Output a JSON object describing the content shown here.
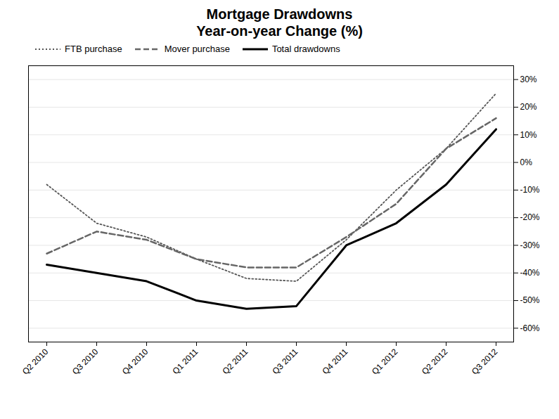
{
  "chart_data": {
    "type": "line",
    "title": "Mortgage Drawdowns\nYear-on-year Change (%)",
    "categories": [
      "Q2 2010",
      "Q3 2010",
      "Q4 2010",
      "Q1 2011",
      "Q2 2011",
      "Q3 2011",
      "Q4 2011",
      "Q1 2012",
      "Q2 2012",
      "Q3 2012"
    ],
    "series": [
      {
        "name": "FTB purchase",
        "color": "#555555",
        "line_style": "dotted",
        "values": [
          -8,
          -22,
          -27,
          -35,
          -42,
          -43,
          -28,
          -10,
          5,
          25
        ]
      },
      {
        "name": "Mover purchase",
        "color": "#666666",
        "line_style": "dashed",
        "values": [
          -33,
          -25,
          -28,
          -35,
          -38,
          -38,
          -27,
          -15,
          5,
          16
        ]
      },
      {
        "name": "Total drawdowns",
        "color": "#000000",
        "line_style": "solid",
        "values": [
          -37,
          -40,
          -43,
          -50,
          -53,
          -52,
          -30,
          -22,
          -8,
          12
        ]
      }
    ],
    "ylim": [
      -65,
      35
    ],
    "yticks": [
      {
        "value": 30,
        "label": "30%"
      },
      {
        "value": 20,
        "label": "20%"
      },
      {
        "value": 10,
        "label": "10%"
      },
      {
        "value": 0,
        "label": "0%"
      },
      {
        "value": -10,
        "label": "-10%"
      },
      {
        "value": -20,
        "label": "-20%"
      },
      {
        "value": -30,
        "label": "-30%"
      },
      {
        "value": -40,
        "label": "-40%"
      },
      {
        "value": -50,
        "label": "-50%"
      },
      {
        "value": -60,
        "label": "-60%"
      }
    ],
    "grid": true,
    "legend": "upper left"
  }
}
